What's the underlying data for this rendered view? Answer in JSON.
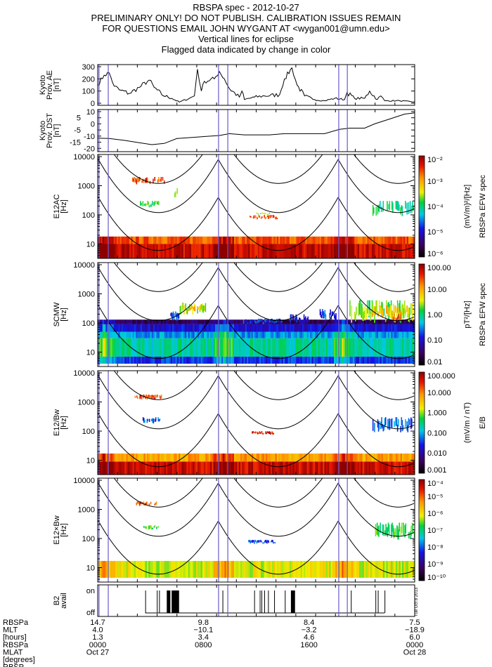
{
  "header": {
    "lines": [
      "RBSPA spec - 2012-10-27",
      "PRELIMINARY ONLY! DO NOT PUBLISH. CALIBRATION ISSUES REMAIN",
      "FOR QUESTIONS EMAIL JOHN WYGANT AT <wygan001@umn.edu>",
      "Vertical lines for eclipse",
      "Flagged data indicated by change in color"
    ]
  },
  "colors": {
    "eclipse_line": "#6a5acd",
    "trace": "#000000",
    "curve": "#000000"
  },
  "eclipse_hours": [
    0.1,
    0.8,
    9.15,
    9.85,
    18.25,
    18.9
  ],
  "plot_stamp": "Tue Oct 8 2013",
  "chart_data": [
    {
      "id": "ae",
      "type": "line",
      "ylabel_lines": [
        "Kyoto",
        "Prov. AE",
        "[nT]"
      ],
      "ylim": [
        0,
        300
      ],
      "yticks": [
        "0",
        "100",
        "200",
        "300"
      ],
      "ytick_values": [
        0,
        100,
        200,
        300
      ],
      "x_hours": [
        0,
        0.49,
        0.87,
        1.25,
        1.63,
        2.39,
        3.15,
        3.9,
        4.28,
        4.85,
        5.61,
        6.18,
        6.94,
        7.32,
        7.55,
        7.85,
        8.08,
        8.83,
        9.21,
        9.59,
        9.97,
        10.73,
        10.92,
        11.11,
        11.87,
        12.63,
        13.77,
        14.14,
        14.71,
        15.09,
        15.66,
        16.42,
        17.18,
        17.94,
        18.69,
        18.88,
        19.45,
        20.21,
        20.59,
        21.16,
        21.44,
        21.73,
        22.87,
        24
      ],
      "y": [
        150,
        230,
        250,
        140,
        110,
        80,
        130,
        190,
        130,
        70,
        40,
        10,
        40,
        60,
        280,
        100,
        180,
        200,
        260,
        200,
        120,
        50,
        100,
        30,
        50,
        60,
        70,
        200,
        290,
        150,
        60,
        30,
        20,
        40,
        30,
        90,
        40,
        40,
        100,
        30,
        60,
        20,
        20,
        10
      ]
    },
    {
      "id": "dst",
      "type": "line",
      "ylabel_lines": [
        "Kyoto",
        "Prov. DST",
        "[nT]"
      ],
      "ylim": [
        -21,
        10
      ],
      "yticks": [
        "10",
        "5",
        "0",
        "-5",
        "-10",
        "-15",
        "-20"
      ],
      "ytick_values": [
        10,
        5,
        0,
        -5,
        -10,
        -15,
        -20
      ],
      "x_hours": [
        0,
        0.87,
        2.01,
        4.1,
        5.04,
        5.99,
        9.21,
        9.97,
        11.11,
        13.0,
        14.14,
        17.18,
        18.3,
        19.07,
        20.21,
        20.97,
        23.24,
        24
      ],
      "y": [
        -11.7,
        -12,
        -13.5,
        -17,
        -16,
        -12,
        -9.5,
        -8,
        -9,
        -9,
        -8,
        -8,
        -4.5,
        -3.5,
        -3.5,
        0,
        8,
        9
      ]
    },
    {
      "id": "e12ac",
      "type": "heatmap",
      "yscale": "log",
      "ylabel_lines": [
        "E12AC",
        "[Hz]"
      ],
      "yticks": [
        "10000",
        "1000",
        "100",
        "10"
      ],
      "ytick_values": [
        10000,
        1000,
        100,
        10
      ],
      "colorbar": {
        "scale": "log",
        "ticks": [
          "10⁻²",
          "10⁻³",
          "10⁻⁴",
          "10⁻⁵",
          "10⁻⁶"
        ],
        "label_lines": [
          "(mV/m)²/[Hz]",
          "RBSPa EFW spec"
        ]
      },
      "bands": [
        {
          "t": [
            0,
            24
          ],
          "f": [
            3.2,
            10
          ],
          "level": 0.93
        },
        {
          "t": [
            0,
            24
          ],
          "f": [
            10,
            18
          ],
          "level": 0.84
        }
      ],
      "patches": [
        {
          "t": [
            2.6,
            5.0
          ],
          "f": [
            1100,
            2000
          ],
          "level": 0.85
        },
        {
          "t": [
            3.2,
            4.6
          ],
          "f": [
            180,
            300
          ],
          "level": 0.55
        },
        {
          "t": [
            5.8,
            6.0
          ],
          "f": [
            400,
            900
          ],
          "level": 0.55
        },
        {
          "t": [
            11.5,
            13.6
          ],
          "f": [
            70,
            100
          ],
          "level": 0.86
        },
        {
          "t": [
            12.0,
            13.0
          ],
          "f": [
            100,
            120
          ],
          "level": 0.6
        },
        {
          "t": [
            20.8,
            24
          ],
          "f": [
            90,
            300
          ],
          "level": 0.5
        }
      ]
    },
    {
      "id": "scmw",
      "type": "heatmap",
      "yscale": "log",
      "ylabel_lines": [
        "SCMW",
        "[Hz]"
      ],
      "yticks": [
        "10000",
        "1000",
        "100",
        "10"
      ],
      "ytick_values": [
        10000,
        1000,
        100,
        10
      ],
      "colorbar": {
        "scale": "log",
        "ticks": [
          "100.00",
          "10.00",
          "1.00",
          "0.10",
          "0.01"
        ],
        "label_lines": [
          "pT²/[Hz]",
          "RBSPa EFW spec"
        ]
      },
      "bands": [
        {
          "t": [
            0,
            24
          ],
          "f": [
            4,
            7
          ],
          "level": 0.3
        },
        {
          "t": [
            0,
            24
          ],
          "f": [
            7,
            30
          ],
          "level": 0.47
        },
        {
          "t": [
            0,
            24
          ],
          "f": [
            30,
            50
          ],
          "level": 0.38
        },
        {
          "t": [
            0,
            24
          ],
          "f": [
            50,
            90
          ],
          "level": 0.25
        },
        {
          "t": [
            0,
            24
          ],
          "f": [
            90,
            130
          ],
          "level": 0.12
        }
      ],
      "patches": [
        {
          "t": [
            5.5,
            6.2
          ],
          "f": [
            120,
            250
          ],
          "level": 0.3
        },
        {
          "t": [
            6.2,
            8.2
          ],
          "f": [
            180,
            500
          ],
          "level": 0.62
        },
        {
          "t": [
            6.8,
            7.8
          ],
          "f": [
            250,
            400
          ],
          "level": 0.76
        },
        {
          "t": [
            11,
            14
          ],
          "f": [
            90,
            140
          ],
          "level": 0.3
        },
        {
          "t": [
            14.5,
            16
          ],
          "f": [
            90,
            200
          ],
          "level": 0.25
        },
        {
          "t": [
            16.8,
            18
          ],
          "f": [
            120,
            300
          ],
          "level": 0.3
        },
        {
          "t": [
            19,
            24
          ],
          "f": [
            100,
            600
          ],
          "level": 0.58
        },
        {
          "t": [
            20.5,
            23.5
          ],
          "f": [
            150,
            400
          ],
          "level": 0.72
        },
        {
          "t": [
            22,
            23
          ],
          "f": [
            100,
            200
          ],
          "level": 0.84
        }
      ]
    },
    {
      "id": "e12_over_bw",
      "type": "heatmap",
      "yscale": "log",
      "ylabel_lines": [
        "E12/Bw",
        "[Hz]"
      ],
      "yticks": [
        "10000",
        "1000",
        "100",
        "10"
      ],
      "ytick_values": [
        10000,
        1000,
        100,
        10
      ],
      "colorbar": {
        "scale": "log",
        "ticks": [
          "100.000",
          "10.000",
          "1.000",
          "0.100",
          "0.010",
          "0.001"
        ],
        "label_lines": [
          "(mV/m / nT)",
          "E/B"
        ]
      },
      "bands": [
        {
          "t": [
            0,
            24
          ],
          "f": [
            3.2,
            9
          ],
          "level": 0.93
        },
        {
          "t": [
            0,
            24
          ],
          "f": [
            9,
            17
          ],
          "level": 0.76
        }
      ],
      "patches": [
        {
          "t": [
            2.8,
            4.8
          ],
          "f": [
            1200,
            1800
          ],
          "level": 0.85
        },
        {
          "t": [
            3.4,
            4.8
          ],
          "f": [
            180,
            300
          ],
          "level": 0.33
        },
        {
          "t": [
            11.6,
            13.4
          ],
          "f": [
            75,
            100
          ],
          "level": 0.9
        },
        {
          "t": [
            20.8,
            24
          ],
          "f": [
            90,
            300
          ],
          "level": 0.35
        }
      ]
    },
    {
      "id": "e12_cross_bw",
      "type": "heatmap",
      "yscale": "log",
      "ylabel_lines": [
        "E12×Bw",
        "[Hz]"
      ],
      "yticks": [
        "10000",
        "1000",
        "100",
        "10"
      ],
      "ytick_values": [
        10000,
        1000,
        100,
        10
      ],
      "colorbar": {
        "scale": "log",
        "ticks": [
          "10⁻⁴",
          "10⁻⁵",
          "10⁻⁶",
          "10⁻⁷",
          "10⁻⁸",
          "10⁻⁹",
          "10⁻¹⁰"
        ],
        "label_lines": []
      },
      "bands": [
        {
          "t": [
            0,
            24
          ],
          "f": [
            4.5,
            17
          ],
          "level": 0.64
        }
      ],
      "patches": [
        {
          "t": [
            2.9,
            4.5
          ],
          "f": [
            1300,
            2000
          ],
          "level": 0.85
        },
        {
          "t": [
            3.4,
            4.6
          ],
          "f": [
            200,
            300
          ],
          "level": 0.55
        },
        {
          "t": [
            11.4,
            13.4
          ],
          "f": [
            65,
            90
          ],
          "level": 0.32
        },
        {
          "t": [
            21,
            24
          ],
          "f": [
            90,
            350
          ],
          "level": 0.55
        }
      ]
    },
    {
      "id": "b2avail",
      "type": "step",
      "ylabel_lines": [
        "B2",
        "avail"
      ],
      "yticks": [
        "on",
        "off"
      ],
      "data_range": [
        3.6,
        21.72
      ],
      "on_intervals": [
        [
          3.6,
          3.62
        ],
        [
          4.48,
          4.5
        ],
        [
          4.65,
          4.67
        ],
        [
          5.23,
          5.5
        ],
        [
          5.6,
          6.16
        ],
        [
          9.45,
          9.47
        ],
        [
          11.85,
          11.87
        ],
        [
          12.27,
          12.29
        ],
        [
          12.4,
          12.45
        ],
        [
          12.61,
          12.65
        ],
        [
          12.9,
          12.95
        ],
        [
          13.36,
          13.38
        ],
        [
          14.17,
          14.19
        ],
        [
          14.63,
          14.94
        ],
        [
          19.17,
          19.19
        ],
        [
          21.03,
          21.05
        ],
        [
          21.21,
          21.23
        ],
        [
          21.72,
          21.74
        ]
      ]
    }
  ],
  "x_axis": {
    "row_labels": [
      "RBSPa",
      "MLT",
      "[hours]",
      "RBSPa",
      "MLAT",
      "[degrees]",
      "RBSP"
    ],
    "ticks": [
      {
        "hour": 0,
        "values": [
          "14.7",
          "4.0",
          "1.3",
          "0000",
          "Oct 27"
        ]
      },
      {
        "hour": 8,
        "values": [
          "9.8",
          "−10.1",
          "3.4",
          "0800",
          ""
        ]
      },
      {
        "hour": 16,
        "values": [
          "8.4",
          "−3.2",
          "4.6",
          "1600",
          ""
        ]
      },
      {
        "hour": 24,
        "values": [
          "7.5",
          "−18.9",
          "6.0",
          "0000",
          "Oct 28"
        ]
      }
    ]
  }
}
